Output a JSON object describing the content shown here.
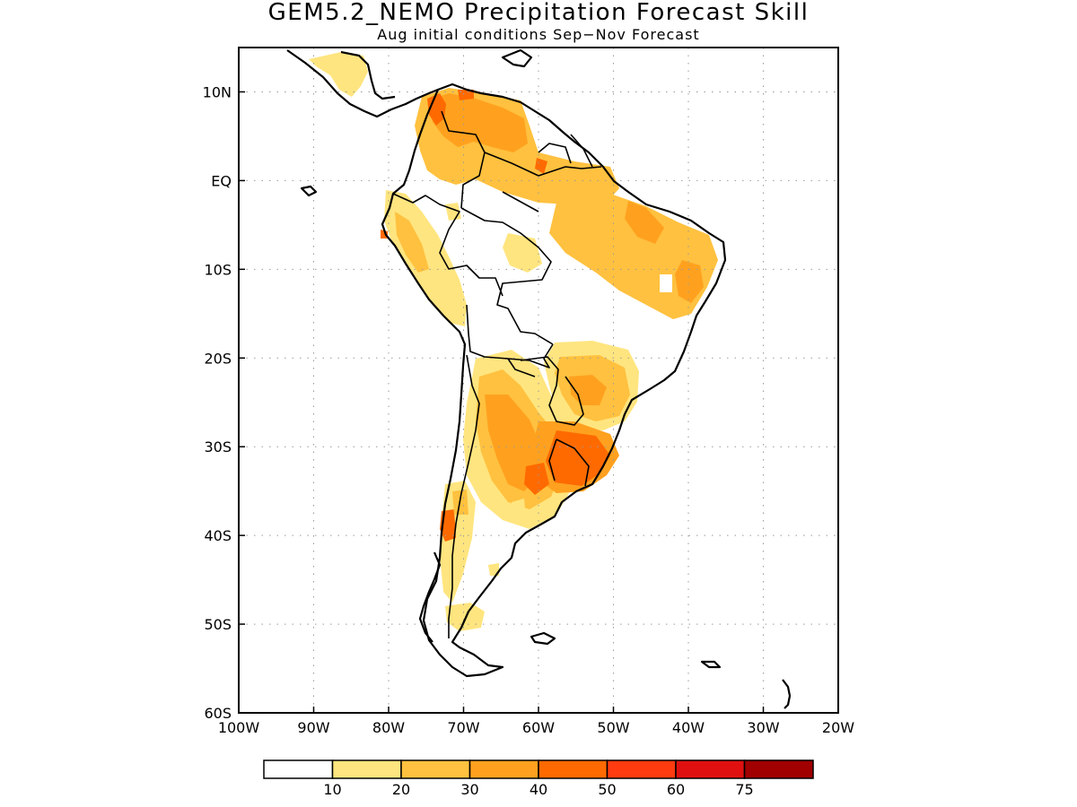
{
  "title": "GEM5.2_NEMO Precipitation Forecast Skill",
  "subtitle": "Aug initial conditions  Sep−Nov Forecast",
  "map": {
    "region": "South America",
    "lon_range": [
      -100,
      -20
    ],
    "lat_range": [
      -60,
      15
    ],
    "x_ticks": [
      {
        "lon": -100,
        "label": "100W"
      },
      {
        "lon": -90,
        "label": "90W"
      },
      {
        "lon": -80,
        "label": "80W"
      },
      {
        "lon": -70,
        "label": "70W"
      },
      {
        "lon": -60,
        "label": "60W"
      },
      {
        "lon": -50,
        "label": "50W"
      },
      {
        "lon": -40,
        "label": "40W"
      },
      {
        "lon": -30,
        "label": "30W"
      },
      {
        "lon": -20,
        "label": "20W"
      }
    ],
    "y_ticks": [
      {
        "lat": 10,
        "label": "10N"
      },
      {
        "lat": 0,
        "label": "EQ"
      },
      {
        "lat": -10,
        "label": "10S"
      },
      {
        "lat": -20,
        "label": "20S"
      },
      {
        "lat": -30,
        "label": "30S"
      },
      {
        "lat": -40,
        "label": "40S"
      },
      {
        "lat": -50,
        "label": "50S"
      },
      {
        "lat": -60,
        "label": "60S"
      }
    ],
    "grid": "dotted"
  },
  "legend": {
    "bins": [
      {
        "color": "#ffffff",
        "label": ""
      },
      {
        "color": "#ffe57f",
        "label": "10"
      },
      {
        "color": "#ffc13f",
        "label": "20"
      },
      {
        "color": "#ffa11f",
        "label": "30"
      },
      {
        "color": "#ff6a00",
        "label": "40"
      },
      {
        "color": "#ff3b10",
        "label": "50"
      },
      {
        "color": "#e01010",
        "label": "60"
      },
      {
        "color": "#a00000",
        "label": "75"
      }
    ]
  },
  "skill_regions": [
    {
      "name": "central-america",
      "level": 10,
      "color": "#ffe57f"
    },
    {
      "name": "northern-sa",
      "level": 20,
      "color": "#ffc13f"
    },
    {
      "name": "venezuela-core",
      "level": 30,
      "color": "#ffa11f"
    },
    {
      "name": "venezuela-peak",
      "level": 40,
      "color": "#ff6a00"
    },
    {
      "name": "ecuador-peru-coast",
      "level": 10,
      "color": "#ffe57f"
    },
    {
      "name": "north-brazil",
      "level": 20,
      "color": "#ffc13f"
    },
    {
      "name": "northeast-brazil",
      "level": 30,
      "color": "#ffa11f"
    },
    {
      "name": "southeast-brazil",
      "level": 20,
      "color": "#ffc13f"
    },
    {
      "name": "paraguay-argentina",
      "level": 20,
      "color": "#ffc13f"
    },
    {
      "name": "south-brazil-uruguay",
      "level": 40,
      "color": "#ff6a00"
    },
    {
      "name": "chile-central",
      "level": 10,
      "color": "#ffe57f"
    },
    {
      "name": "chile-peak",
      "level": 40,
      "color": "#ff6a00"
    },
    {
      "name": "patagonia",
      "level": 10,
      "color": "#ffe57f"
    }
  ]
}
